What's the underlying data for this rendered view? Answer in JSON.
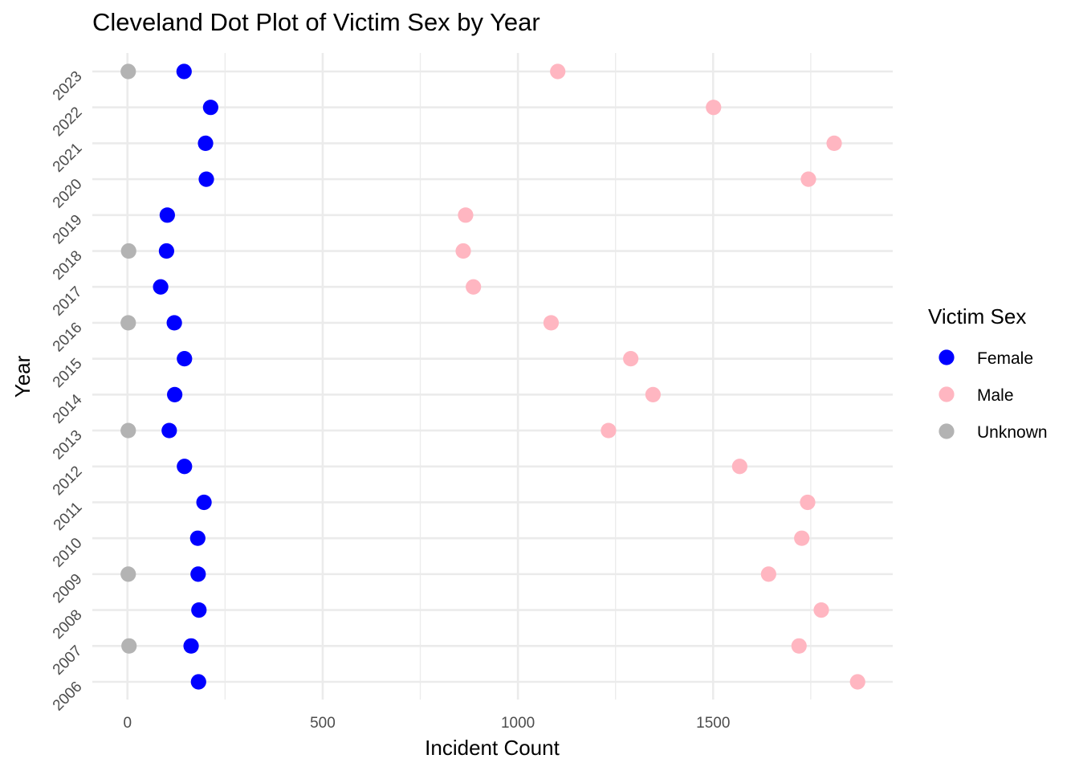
{
  "chart_data": {
    "type": "scatter",
    "title": "Cleveland Dot Plot of Victim Sex by Year",
    "xlabel": "Incident Count",
    "ylabel": "Year",
    "xlim": [
      -90,
      1960
    ],
    "x_ticks": [
      "0",
      "500",
      "1000",
      "1500"
    ],
    "x_tick_values": [
      0,
      500,
      1000,
      1500
    ],
    "x_minor_values": [
      250,
      750,
      1250,
      1750
    ],
    "categories": [
      "2006",
      "2007",
      "2008",
      "2009",
      "2010",
      "2011",
      "2012",
      "2013",
      "2014",
      "2015",
      "2016",
      "2017",
      "2018",
      "2019",
      "2020",
      "2021",
      "2022",
      "2023"
    ],
    "legend": {
      "title": "Victim Sex",
      "position": "right"
    },
    "grid": true,
    "series": [
      {
        "name": "Female",
        "color": "#0000FF",
        "values": [
          182,
          163,
          183,
          181,
          180,
          196,
          146,
          107,
          121,
          146,
          120,
          85,
          100,
          102,
          202,
          200,
          213,
          145
        ]
      },
      {
        "name": "Male",
        "color": "#FFB6C1",
        "values": [
          1870,
          1720,
          1777,
          1642,
          1727,
          1742,
          1568,
          1232,
          1346,
          1289,
          1085,
          886,
          860,
          866,
          1744,
          1810,
          1501,
          1102
        ]
      },
      {
        "name": "Unknown",
        "color": "#B3B3B3",
        "values": [
          null,
          4,
          null,
          2,
          null,
          null,
          null,
          2,
          null,
          null,
          2,
          null,
          3,
          null,
          null,
          null,
          null,
          2
        ]
      }
    ]
  }
}
